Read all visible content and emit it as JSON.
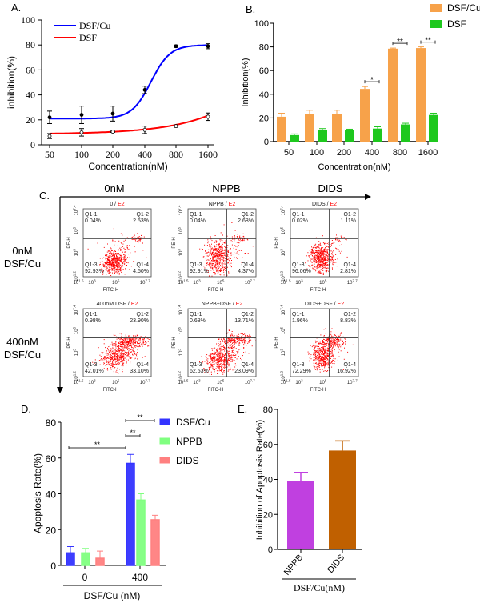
{
  "chart_data": [
    {
      "panel": "A.",
      "type": "line",
      "categories": [
        "50",
        "100",
        "200",
        "400",
        "800",
        "1600"
      ],
      "xlabel": "Concentration(nM)",
      "ylabel": "inhibition(%)",
      "ylim": [
        0,
        100
      ],
      "yticks": [
        "0",
        "20",
        "40",
        "60",
        "80",
        "100"
      ],
      "legend": "top-left",
      "series": [
        {
          "name": "DSF/Cu",
          "color": "#0000ff",
          "values": [
            22,
            24,
            25,
            44,
            79,
            79
          ],
          "errors": [
            5,
            7,
            6,
            3,
            1,
            2
          ]
        },
        {
          "name": "DSF",
          "color": "#ff0000",
          "values": [
            7,
            10,
            10.5,
            12,
            15,
            22.5
          ],
          "errors": [
            2,
            3,
            0.5,
            3,
            1,
            3
          ]
        }
      ]
    },
    {
      "panel": "B.",
      "type": "bar",
      "categories": [
        "50",
        "100",
        "200",
        "400",
        "800",
        "1600"
      ],
      "xlabel": "Concentration(nM)",
      "ylabel": "Inhibition(%)",
      "ylim": [
        0,
        100
      ],
      "yticks": [
        "0",
        "20",
        "40",
        "60",
        "80",
        "100"
      ],
      "legend": "top-right",
      "series": [
        {
          "name": "DSF/Cu",
          "color": "#f7a24a",
          "values": [
            21,
            23,
            23.5,
            44.5,
            78.5,
            79
          ],
          "errors": [
            3,
            3.5,
            3,
            2,
            0.5,
            1
          ]
        },
        {
          "name": "DSF",
          "color": "#1ec81e",
          "values": [
            5.5,
            9.5,
            10,
            11,
            14.5,
            22.5
          ],
          "errors": [
            1,
            1.5,
            0.5,
            1.5,
            1,
            1.5
          ]
        }
      ],
      "significance": [
        {
          "category": "400",
          "label": "*"
        },
        {
          "category": "800",
          "label": "**"
        },
        {
          "category": "1600",
          "label": "**"
        }
      ]
    },
    {
      "panel": "C.",
      "type": "scatter",
      "column_headers": [
        "0nM",
        "NPPB",
        "DIDS"
      ],
      "row_headers": [
        [
          "0nM",
          "DSF/Cu"
        ],
        [
          "400nM",
          "DSF/Cu"
        ]
      ],
      "xlabel": "FITC-H",
      "ylabel": "PE-H",
      "yticks": [
        {
          "b": "10",
          "e": "7.4"
        },
        {
          "b": "10",
          "e": "5"
        },
        {
          "b": "10",
          "e": "3"
        },
        {
          "b": "10",
          "e": "1.2"
        }
      ],
      "xticks": [
        {
          "b": "10",
          "e": "1.5"
        },
        {
          "b": "10",
          "e": "3"
        },
        {
          "b": "10",
          "e": "5"
        },
        {
          "b": "10",
          "e": "7.7"
        }
      ],
      "dot_color": "#ff0000",
      "plots": [
        {
          "title": "0 / ",
          "gate": "E2",
          "q": [
            [
              "Q1-1",
              "0.04%"
            ],
            [
              "Q1-2",
              "2.53%"
            ],
            [
              "Q1-3",
              "92.93%"
            ],
            [
              "Q1-4",
              "4.50%"
            ]
          ]
        },
        {
          "title": "NPPB / ",
          "gate": "E2",
          "q": [
            [
              "Q1-1",
              "0.04%"
            ],
            [
              "Q1-2",
              "2.68%"
            ],
            [
              "Q1-3",
              "92.91%"
            ],
            [
              "Q1-4",
              "4.37%"
            ]
          ]
        },
        {
          "title": "DIDS / ",
          "gate": "E2",
          "q": [
            [
              "Q1-1",
              "0.02%"
            ],
            [
              "Q1-2",
              "1.11%"
            ],
            [
              "Q1-3",
              "96.06%"
            ],
            [
              "Q1-4",
              "2.81%"
            ]
          ]
        },
        {
          "title": "400nM DSF / ",
          "gate": "E2",
          "q": [
            [
              "Q1-1",
              "0.98%"
            ],
            [
              "Q1-2",
              "23.90%"
            ],
            [
              "Q1-3",
              "42.01%"
            ],
            [
              "Q1-4",
              "33.10%"
            ]
          ]
        },
        {
          "title": "NPPB+DSF / ",
          "gate": "E2",
          "q": [
            [
              "Q1-1",
              "0.68%"
            ],
            [
              "Q1-2",
              "13.71%"
            ],
            [
              "Q1-3",
              "62.53%"
            ],
            [
              "Q1-4",
              "23.09%"
            ]
          ]
        },
        {
          "title": "DIDS+DSF / ",
          "gate": "E2",
          "q": [
            [
              "Q1-1",
              "1.96%"
            ],
            [
              "Q1-2",
              "8.83%"
            ],
            [
              "Q1-3",
              "72.29%"
            ],
            [
              "Q1-4",
              "16.92%"
            ]
          ]
        }
      ]
    },
    {
      "panel": "D.",
      "type": "bar",
      "categories": [
        "0",
        "400"
      ],
      "xlabel": "DSF/Cu (nM)",
      "ylabel": "Apoptosis Rate(%)",
      "ylim": [
        0,
        80
      ],
      "yticks": [
        "0",
        "20",
        "40",
        "60",
        "80"
      ],
      "legend": "top-right",
      "series": [
        {
          "name": "DSF/Cu",
          "color": "#3333ff",
          "values": [
            7,
            57
          ],
          "errors": [
            3.5,
            5
          ]
        },
        {
          "name": "NPPB",
          "color": "#80ff80",
          "values": [
            7,
            36.5
          ],
          "errors": [
            2.5,
            3.5
          ]
        },
        {
          "name": "DIDS",
          "color": "#ff8080",
          "values": [
            4,
            25.5
          ],
          "errors": [
            4,
            2.5
          ]
        }
      ],
      "significance": [
        {
          "between": [
            "0 DSF/Cu",
            "400 DSF/Cu"
          ],
          "label": "**"
        },
        {
          "between": [
            "400 DSF/Cu",
            "400 NPPB"
          ],
          "label": "**"
        },
        {
          "between": [
            "400 DSF/Cu",
            "400 DIDS"
          ],
          "label": "**"
        }
      ]
    },
    {
      "panel": "E.",
      "type": "bar",
      "categories": [
        "NPPB",
        "DIDS"
      ],
      "xlabel": "DSF/Cu(nM)",
      "ylabel": "Inhibition of Apoptosis Rate(%)",
      "ylim": [
        0,
        80
      ],
      "yticks": [
        "0",
        "20",
        "40",
        "60",
        "80"
      ],
      "colors": [
        "#c040e0",
        "#c06000"
      ],
      "values": [
        39,
        56.5
      ],
      "errors": [
        5,
        5.5
      ]
    }
  ]
}
